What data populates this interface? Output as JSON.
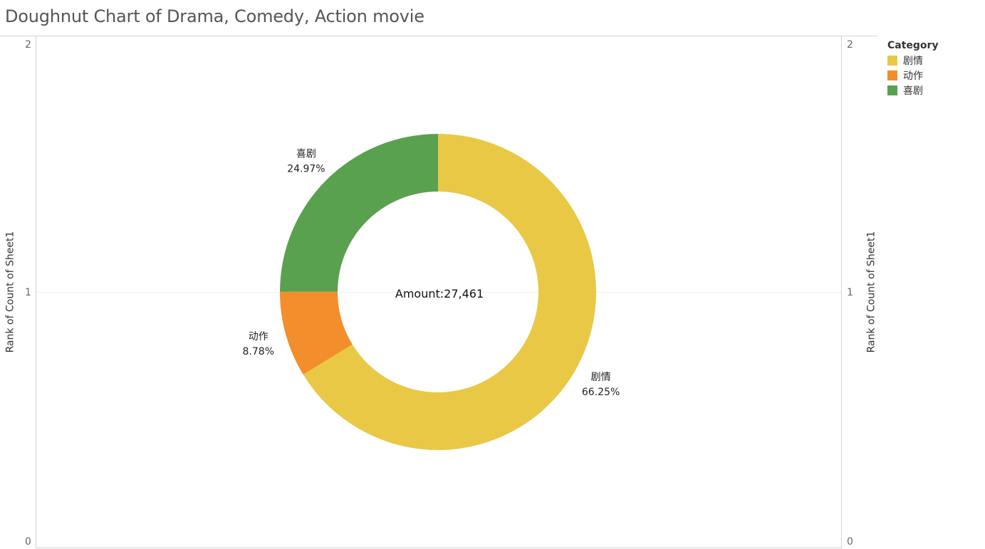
{
  "title": "Doughnut Chart of Drama, Comedy, Action movie",
  "chart_data": {
    "type": "pie",
    "style": "doughnut",
    "center_label": "Amount:27,461",
    "slices": [
      {
        "label": "剧情",
        "percent_label": "66.25%",
        "value": 66.25,
        "color": "#e9c845"
      },
      {
        "label": "动作",
        "percent_label": "8.78%",
        "value": 8.78,
        "color": "#f28e2b"
      },
      {
        "label": "喜剧",
        "percent_label": "24.97%",
        "value": 24.97,
        "color": "#59a14f"
      }
    ],
    "left_axis": {
      "label": "Rank of Count of Sheet1",
      "ticks": [
        "2",
        "1",
        "0"
      ]
    },
    "right_axis": {
      "label": "Rank of Count of Sheet1",
      "ticks": [
        "2",
        "1",
        "0"
      ]
    },
    "legend": {
      "title": "Category",
      "position": "top-right",
      "items": [
        {
          "label": "剧情",
          "color": "#e9c845"
        },
        {
          "label": "动作",
          "color": "#f28e2b"
        },
        {
          "label": "喜剧",
          "color": "#59a14f"
        }
      ]
    }
  }
}
